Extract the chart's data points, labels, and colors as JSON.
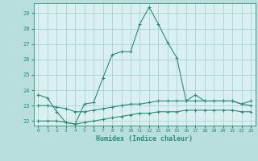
{
  "xlabel": "Humidex (Indice chaleur)",
  "x_values": [
    0,
    1,
    2,
    3,
    4,
    5,
    6,
    7,
    8,
    9,
    10,
    11,
    12,
    13,
    14,
    15,
    16,
    17,
    18,
    19,
    20,
    21,
    22,
    23
  ],
  "line1_y": [
    23.7,
    23.5,
    22.6,
    21.9,
    21.8,
    23.1,
    23.2,
    24.8,
    26.3,
    26.5,
    26.5,
    28.3,
    29.4,
    28.3,
    27.1,
    26.1,
    23.3,
    23.7,
    23.3,
    23.3,
    23.3,
    23.3,
    23.1,
    23.3
  ],
  "line2_y": [
    23.0,
    23.0,
    22.9,
    22.8,
    22.6,
    22.6,
    22.7,
    22.8,
    22.9,
    23.0,
    23.1,
    23.1,
    23.2,
    23.3,
    23.3,
    23.3,
    23.3,
    23.3,
    23.3,
    23.3,
    23.3,
    23.3,
    23.1,
    23.0
  ],
  "line3_y": [
    22.0,
    22.0,
    22.0,
    21.9,
    21.8,
    21.9,
    22.0,
    22.1,
    22.2,
    22.3,
    22.4,
    22.5,
    22.5,
    22.6,
    22.6,
    22.6,
    22.7,
    22.7,
    22.7,
    22.7,
    22.7,
    22.7,
    22.6,
    22.6
  ],
  "line_color": "#2e8b75",
  "bg_color": "#b8dede",
  "grid_color": "#9ecece",
  "plot_bg": "#daf0f0",
  "ylim_min": 21.7,
  "ylim_max": 29.65,
  "xlim_min": -0.5,
  "xlim_max": 23.5,
  "yticks": [
    22,
    23,
    24,
    25,
    26,
    27,
    28,
    29
  ],
  "marker_size": 3,
  "linewidth": 0.8
}
